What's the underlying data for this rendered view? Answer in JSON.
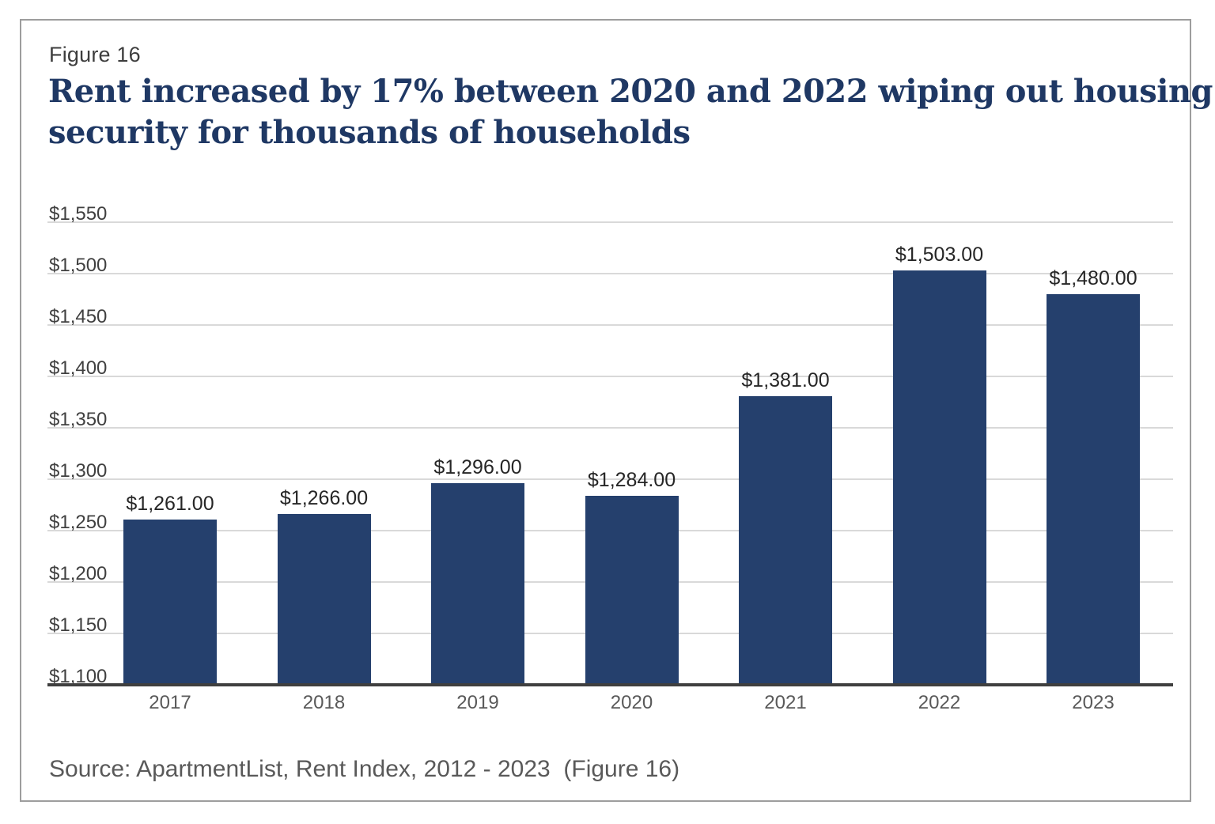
{
  "panel": {
    "figure_label": "Figure 16",
    "title_line1": "Rent increased by 17% between 2020 and 2022 wiping out housing",
    "title_line2": "security for thousands of households",
    "source": "Source: ApartmentList, Rent Index, 2012 - 2023  (Figure 16)"
  },
  "colors": {
    "bar": "#25406d",
    "title": "#1f3864",
    "gridline": "#d9d9d9",
    "axis_line": "#3f3f3f",
    "ytick_label": "#404040",
    "bar_value_label": "#262626",
    "xtick_label": "#595959",
    "panel_border": "#9d9d9d"
  },
  "chart_data": {
    "type": "bar",
    "title": "Rent increased by 17% between 2020 and 2022 wiping out housing security for thousands of households",
    "categories": [
      "2017",
      "2018",
      "2019",
      "2020",
      "2021",
      "2022",
      "2023"
    ],
    "values": [
      1261,
      1266,
      1296,
      1284,
      1381,
      1503,
      1480
    ],
    "value_labels": [
      "$1,261.00",
      "$1,266.00",
      "$1,296.00",
      "$1,284.00",
      "$1,381.00",
      "$1,503.00",
      "$1,480.00"
    ],
    "xlabel": "",
    "ylabel": "",
    "ylim": [
      1100,
      1550
    ],
    "ytick_step": 50,
    "ytick_labels": [
      "$1,100",
      "$1,150",
      "$1,200",
      "$1,250",
      "$1,300",
      "$1,350",
      "$1,400",
      "$1,450",
      "$1,500",
      "$1,550"
    ],
    "grid": true,
    "legend": false,
    "bar_color": "#25406d"
  }
}
